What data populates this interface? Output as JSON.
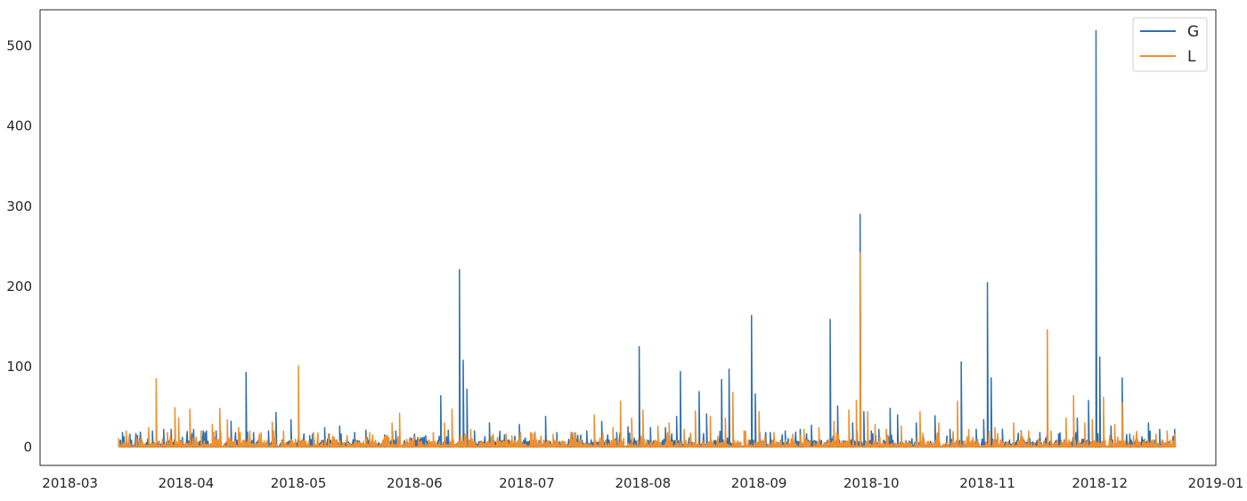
{
  "chart_data": {
    "type": "line",
    "title": "",
    "xlabel": "",
    "ylabel": "",
    "x_range": [
      "2018-02-21",
      "2019-01-01"
    ],
    "ylim": [
      -23,
      545
    ],
    "grid": false,
    "legend_position": "top-right",
    "x_ticks": [
      "2018-03",
      "2018-04",
      "2018-05",
      "2018-06",
      "2018-07",
      "2018-08",
      "2018-09",
      "2018-10",
      "2018-11",
      "2018-12",
      "2019-01"
    ],
    "y_ticks": [
      0,
      100,
      200,
      300,
      400,
      500
    ],
    "series": [
      {
        "name": "G",
        "color": "#2f6fad",
        "points": [
          [
            "2018-03-14",
            10
          ],
          [
            "2018-03-15",
            18
          ],
          [
            "2018-03-17",
            16
          ],
          [
            "2018-03-19",
            14
          ],
          [
            "2018-03-23",
            20
          ],
          [
            "2018-03-26",
            22
          ],
          [
            "2018-03-28",
            22
          ],
          [
            "2018-03-31",
            12
          ],
          [
            "2018-04-03",
            22
          ],
          [
            "2018-04-06",
            18
          ],
          [
            "2018-04-09",
            20
          ],
          [
            "2018-04-13",
            32
          ],
          [
            "2018-04-17",
            93
          ],
          [
            "2018-04-19",
            18
          ],
          [
            "2018-04-23",
            20
          ],
          [
            "2018-04-25",
            43
          ],
          [
            "2018-04-29",
            34
          ],
          [
            "2018-05-04",
            14
          ],
          [
            "2018-05-08",
            24
          ],
          [
            "2018-05-12",
            26
          ],
          [
            "2018-05-16",
            18
          ],
          [
            "2018-05-19",
            21
          ],
          [
            "2018-05-24",
            15
          ],
          [
            "2018-05-27",
            20
          ],
          [
            "2018-06-01",
            16
          ],
          [
            "2018-06-04",
            14
          ],
          [
            "2018-06-08",
            64
          ],
          [
            "2018-06-10",
            21
          ],
          [
            "2018-06-13",
            221
          ],
          [
            "2018-06-14",
            108
          ],
          [
            "2018-06-15",
            72
          ],
          [
            "2018-06-17",
            20
          ],
          [
            "2018-06-21",
            30
          ],
          [
            "2018-06-25",
            15
          ],
          [
            "2018-06-29",
            28
          ],
          [
            "2018-07-03",
            16
          ],
          [
            "2018-07-06",
            38
          ],
          [
            "2018-07-09",
            18
          ],
          [
            "2018-07-13",
            18
          ],
          [
            "2018-07-17",
            20
          ],
          [
            "2018-07-21",
            32
          ],
          [
            "2018-07-25",
            18
          ],
          [
            "2018-07-28",
            25
          ],
          [
            "2018-07-31",
            125
          ],
          [
            "2018-08-03",
            24
          ],
          [
            "2018-08-07",
            24
          ],
          [
            "2018-08-10",
            38
          ],
          [
            "2018-08-11",
            94
          ],
          [
            "2018-08-16",
            69
          ],
          [
            "2018-08-18",
            41
          ],
          [
            "2018-08-22",
            84
          ],
          [
            "2018-08-24",
            97
          ],
          [
            "2018-08-30",
            164
          ],
          [
            "2018-08-31",
            66
          ],
          [
            "2018-09-04",
            18
          ],
          [
            "2018-09-08",
            20
          ],
          [
            "2018-09-12",
            22
          ],
          [
            "2018-09-15",
            27
          ],
          [
            "2018-09-20",
            159
          ],
          [
            "2018-09-22",
            51
          ],
          [
            "2018-09-26",
            30
          ],
          [
            "2018-09-28",
            290
          ],
          [
            "2018-09-29",
            44
          ],
          [
            "2018-10-01",
            20
          ],
          [
            "2018-10-03",
            22
          ],
          [
            "2018-10-06",
            48
          ],
          [
            "2018-10-08",
            40
          ],
          [
            "2018-10-13",
            30
          ],
          [
            "2018-10-18",
            39
          ],
          [
            "2018-10-22",
            22
          ],
          [
            "2018-10-25",
            106
          ],
          [
            "2018-10-29",
            22
          ],
          [
            "2018-10-31",
            34
          ],
          [
            "2018-11-01",
            205
          ],
          [
            "2018-11-02",
            86
          ],
          [
            "2018-11-05",
            22
          ],
          [
            "2018-11-10",
            20
          ],
          [
            "2018-11-15",
            18
          ],
          [
            "2018-11-20",
            16
          ],
          [
            "2018-11-25",
            36
          ],
          [
            "2018-11-28",
            58
          ],
          [
            "2018-11-30",
            519
          ],
          [
            "2018-12-01",
            112
          ],
          [
            "2018-12-04",
            26
          ],
          [
            "2018-12-07",
            86
          ],
          [
            "2018-12-09",
            16
          ],
          [
            "2018-12-11",
            10
          ],
          [
            "2018-12-14",
            30
          ],
          [
            "2018-12-17",
            22
          ],
          [
            "2018-12-21",
            22
          ]
        ]
      },
      {
        "name": "L",
        "color": "#f28e2b",
        "points": [
          [
            "2018-03-14",
            10
          ],
          [
            "2018-03-16",
            20
          ],
          [
            "2018-03-20",
            14
          ],
          [
            "2018-03-22",
            24
          ],
          [
            "2018-03-24",
            85
          ],
          [
            "2018-03-27",
            18
          ],
          [
            "2018-03-29",
            49
          ],
          [
            "2018-03-30",
            36
          ],
          [
            "2018-04-02",
            47
          ],
          [
            "2018-04-05",
            20
          ],
          [
            "2018-04-08",
            28
          ],
          [
            "2018-04-10",
            48
          ],
          [
            "2018-04-12",
            34
          ],
          [
            "2018-04-15",
            24
          ],
          [
            "2018-04-18",
            20
          ],
          [
            "2018-04-21",
            18
          ],
          [
            "2018-04-24",
            31
          ],
          [
            "2018-04-27",
            20
          ],
          [
            "2018-05-01",
            101
          ],
          [
            "2018-05-05",
            18
          ],
          [
            "2018-05-09",
            16
          ],
          [
            "2018-05-14",
            14
          ],
          [
            "2018-05-20",
            18
          ],
          [
            "2018-05-26",
            30
          ],
          [
            "2018-05-28",
            42
          ],
          [
            "2018-06-02",
            12
          ],
          [
            "2018-06-06",
            18
          ],
          [
            "2018-06-09",
            30
          ],
          [
            "2018-06-11",
            47
          ],
          [
            "2018-06-16",
            22
          ],
          [
            "2018-06-22",
            16
          ],
          [
            "2018-06-27",
            14
          ],
          [
            "2018-07-02",
            18
          ],
          [
            "2018-07-08",
            16
          ],
          [
            "2018-07-14",
            18
          ],
          [
            "2018-07-19",
            40
          ],
          [
            "2018-07-24",
            24
          ],
          [
            "2018-07-26",
            57
          ],
          [
            "2018-07-29",
            36
          ],
          [
            "2018-08-01",
            46
          ],
          [
            "2018-08-05",
            26
          ],
          [
            "2018-08-08",
            30
          ],
          [
            "2018-08-12",
            22
          ],
          [
            "2018-08-15",
            45
          ],
          [
            "2018-08-19",
            38
          ],
          [
            "2018-08-23",
            36
          ],
          [
            "2018-08-25",
            68
          ],
          [
            "2018-08-28",
            20
          ],
          [
            "2018-09-01",
            44
          ],
          [
            "2018-09-05",
            18
          ],
          [
            "2018-09-10",
            16
          ],
          [
            "2018-09-13",
            22
          ],
          [
            "2018-09-17",
            24
          ],
          [
            "2018-09-21",
            32
          ],
          [
            "2018-09-25",
            46
          ],
          [
            "2018-09-27",
            58
          ],
          [
            "2018-09-28",
            242
          ],
          [
            "2018-09-30",
            44
          ],
          [
            "2018-10-02",
            28
          ],
          [
            "2018-10-05",
            22
          ],
          [
            "2018-10-09",
            26
          ],
          [
            "2018-10-14",
            44
          ],
          [
            "2018-10-19",
            30
          ],
          [
            "2018-10-24",
            57
          ],
          [
            "2018-10-27",
            22
          ],
          [
            "2018-11-03",
            24
          ],
          [
            "2018-11-08",
            30
          ],
          [
            "2018-11-12",
            20
          ],
          [
            "2018-11-17",
            146
          ],
          [
            "2018-11-18",
            20
          ],
          [
            "2018-11-22",
            36
          ],
          [
            "2018-11-24",
            64
          ],
          [
            "2018-11-27",
            30
          ],
          [
            "2018-11-29",
            34
          ],
          [
            "2018-12-02",
            62
          ],
          [
            "2018-12-05",
            28
          ],
          [
            "2018-12-07",
            55
          ],
          [
            "2018-12-10",
            14
          ],
          [
            "2018-12-13",
            10
          ],
          [
            "2018-12-16",
            16
          ],
          [
            "2018-12-19",
            20
          ],
          [
            "2018-12-21",
            16
          ]
        ]
      }
    ]
  }
}
